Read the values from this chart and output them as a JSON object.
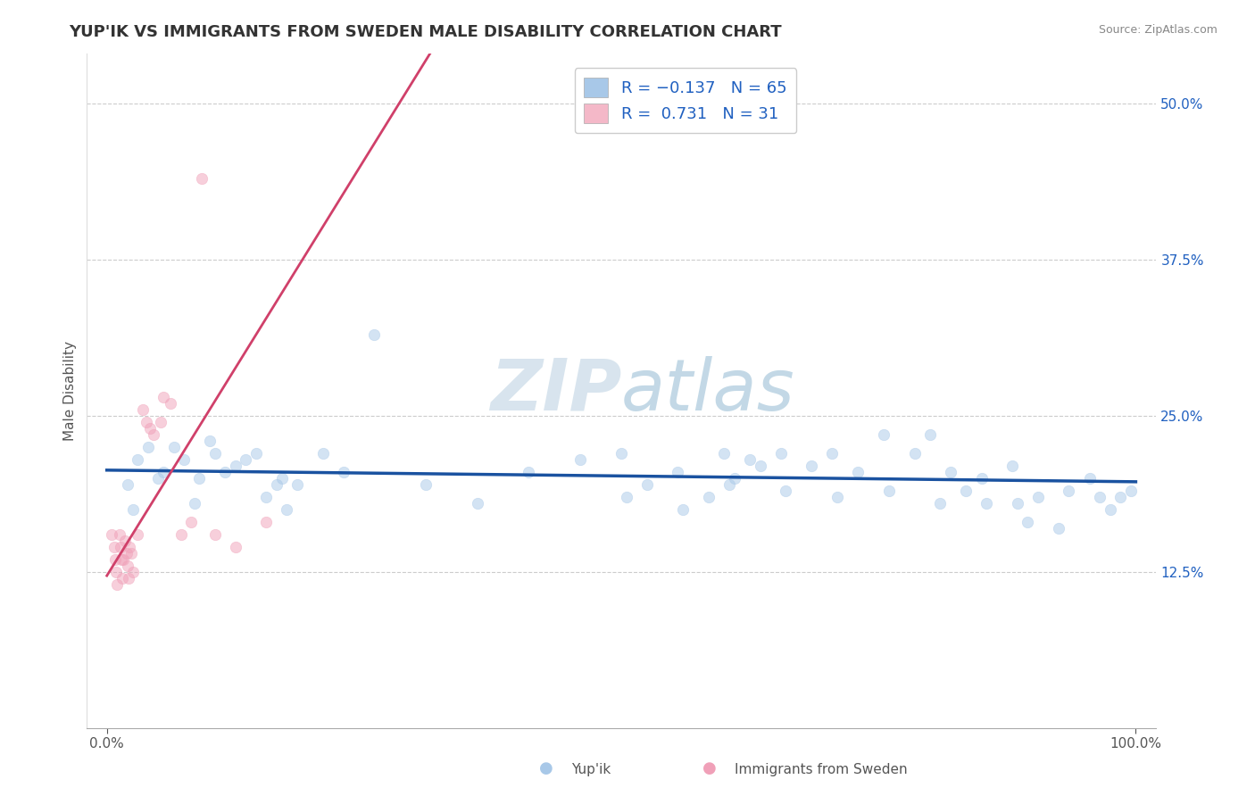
{
  "title": "YUP'IK VS IMMIGRANTS FROM SWEDEN MALE DISABILITY CORRELATION CHART",
  "source": "Source: ZipAtlas.com",
  "ylabel": "Male Disability",
  "watermark": "ZIPatlas",
  "xlim": [
    -0.02,
    1.02
  ],
  "ylim": [
    0.0,
    0.54
  ],
  "xtick_vals": [
    0.0,
    1.0
  ],
  "xtick_labels": [
    "0.0%",
    "100.0%"
  ],
  "ytick_vals": [
    0.125,
    0.25,
    0.375,
    0.5
  ],
  "ytick_labels": [
    "12.5%",
    "25.0%",
    "37.5%",
    "50.0%"
  ],
  "blue_R": -0.137,
  "pink_R": 0.731,
  "blue_scatter_color": "#a8c8e8",
  "pink_scatter_color": "#f0a0b8",
  "blue_line_color": "#1a52a0",
  "pink_line_color": "#d0406a",
  "legend_blue_color": "#a8c8e8",
  "legend_pink_color": "#f4b8c8",
  "legend_text_color": "#2060c0",
  "blue_points": [
    [
      0.02,
      0.195
    ],
    [
      0.025,
      0.175
    ],
    [
      0.03,
      0.215
    ],
    [
      0.04,
      0.225
    ],
    [
      0.05,
      0.2
    ],
    [
      0.055,
      0.205
    ],
    [
      0.065,
      0.225
    ],
    [
      0.075,
      0.215
    ],
    [
      0.085,
      0.18
    ],
    [
      0.09,
      0.2
    ],
    [
      0.1,
      0.23
    ],
    [
      0.105,
      0.22
    ],
    [
      0.115,
      0.205
    ],
    [
      0.125,
      0.21
    ],
    [
      0.135,
      0.215
    ],
    [
      0.145,
      0.22
    ],
    [
      0.155,
      0.185
    ],
    [
      0.165,
      0.195
    ],
    [
      0.17,
      0.2
    ],
    [
      0.175,
      0.175
    ],
    [
      0.185,
      0.195
    ],
    [
      0.21,
      0.22
    ],
    [
      0.23,
      0.205
    ],
    [
      0.26,
      0.315
    ],
    [
      0.31,
      0.195
    ],
    [
      0.36,
      0.18
    ],
    [
      0.41,
      0.205
    ],
    [
      0.46,
      0.215
    ],
    [
      0.5,
      0.22
    ],
    [
      0.505,
      0.185
    ],
    [
      0.525,
      0.195
    ],
    [
      0.555,
      0.205
    ],
    [
      0.56,
      0.175
    ],
    [
      0.585,
      0.185
    ],
    [
      0.6,
      0.22
    ],
    [
      0.605,
      0.195
    ],
    [
      0.61,
      0.2
    ],
    [
      0.625,
      0.215
    ],
    [
      0.635,
      0.21
    ],
    [
      0.655,
      0.22
    ],
    [
      0.66,
      0.19
    ],
    [
      0.685,
      0.21
    ],
    [
      0.705,
      0.22
    ],
    [
      0.71,
      0.185
    ],
    [
      0.73,
      0.205
    ],
    [
      0.755,
      0.235
    ],
    [
      0.76,
      0.19
    ],
    [
      0.785,
      0.22
    ],
    [
      0.8,
      0.235
    ],
    [
      0.81,
      0.18
    ],
    [
      0.82,
      0.205
    ],
    [
      0.835,
      0.19
    ],
    [
      0.85,
      0.2
    ],
    [
      0.855,
      0.18
    ],
    [
      0.88,
      0.21
    ],
    [
      0.885,
      0.18
    ],
    [
      0.895,
      0.165
    ],
    [
      0.905,
      0.185
    ],
    [
      0.925,
      0.16
    ],
    [
      0.935,
      0.19
    ],
    [
      0.955,
      0.2
    ],
    [
      0.965,
      0.185
    ],
    [
      0.975,
      0.175
    ],
    [
      0.985,
      0.185
    ],
    [
      0.995,
      0.19
    ]
  ],
  "pink_points": [
    [
      0.005,
      0.155
    ],
    [
      0.007,
      0.145
    ],
    [
      0.008,
      0.135
    ],
    [
      0.009,
      0.125
    ],
    [
      0.01,
      0.115
    ],
    [
      0.012,
      0.155
    ],
    [
      0.013,
      0.145
    ],
    [
      0.014,
      0.135
    ],
    [
      0.015,
      0.12
    ],
    [
      0.016,
      0.135
    ],
    [
      0.018,
      0.15
    ],
    [
      0.019,
      0.14
    ],
    [
      0.02,
      0.13
    ],
    [
      0.021,
      0.12
    ],
    [
      0.022,
      0.145
    ],
    [
      0.024,
      0.14
    ],
    [
      0.025,
      0.125
    ],
    [
      0.03,
      0.155
    ],
    [
      0.035,
      0.255
    ],
    [
      0.038,
      0.245
    ],
    [
      0.042,
      0.24
    ],
    [
      0.045,
      0.235
    ],
    [
      0.052,
      0.245
    ],
    [
      0.055,
      0.265
    ],
    [
      0.062,
      0.26
    ],
    [
      0.072,
      0.155
    ],
    [
      0.082,
      0.165
    ],
    [
      0.092,
      0.44
    ],
    [
      0.105,
      0.155
    ],
    [
      0.125,
      0.145
    ],
    [
      0.155,
      0.165
    ]
  ],
  "background_color": "#ffffff",
  "grid_color": "#cccccc",
  "title_fontsize": 13,
  "axis_label_fontsize": 11,
  "tick_fontsize": 11,
  "legend_fontsize": 13,
  "scatter_size": 80,
  "scatter_alpha": 0.5,
  "scatter_linewidth": 0.5
}
